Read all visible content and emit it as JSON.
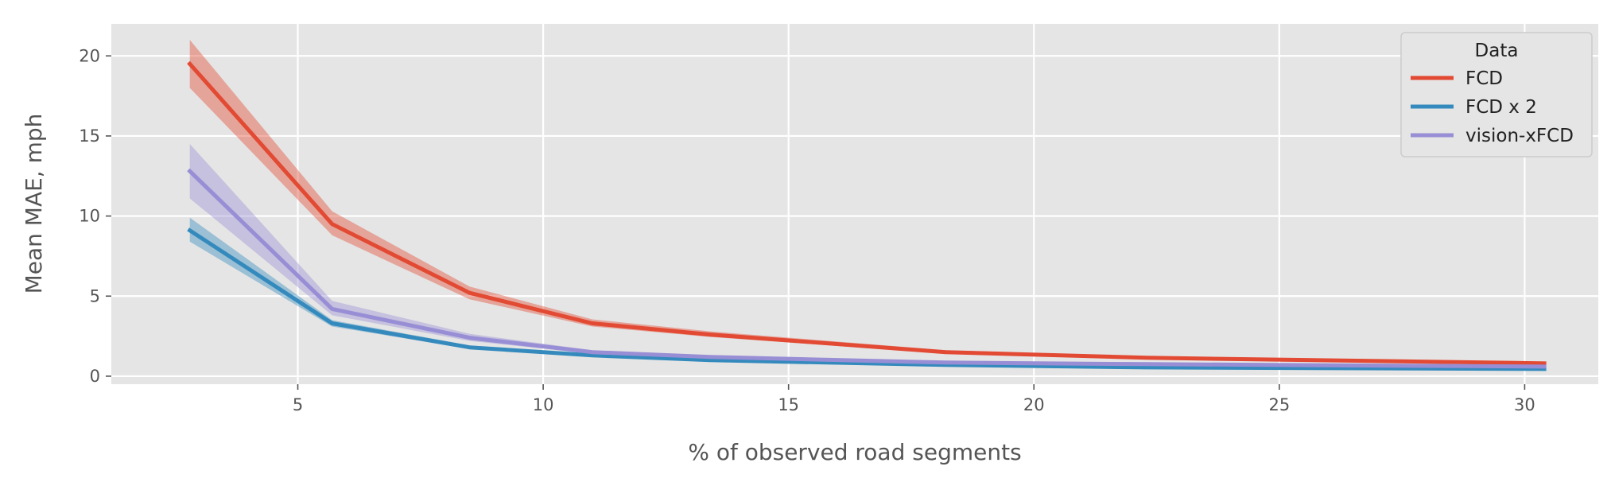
{
  "chart_data": {
    "type": "line",
    "xlabel": "% of observed road segments",
    "ylabel": "Mean MAE, mph",
    "xlim": [
      1.2,
      31.5
    ],
    "ylim": [
      -0.5,
      22
    ],
    "x_ticks": [
      5,
      10,
      15,
      20,
      25,
      30
    ],
    "y_ticks": [
      0,
      5,
      10,
      15,
      20
    ],
    "grid": true,
    "legend": {
      "title": "Data",
      "placement": "top-right"
    },
    "series": [
      {
        "name": "FCD",
        "color": "#E24A33",
        "x": [
          2.8,
          5.7,
          8.5,
          11.0,
          13.4,
          18.2,
          22.3,
          30.4
        ],
        "values": [
          19.5,
          9.5,
          5.2,
          3.3,
          2.6,
          1.5,
          1.15,
          0.8
        ],
        "lower": [
          18.0,
          8.8,
          4.8,
          3.1,
          2.45,
          1.4,
          1.05,
          0.72
        ],
        "upper": [
          21.0,
          10.3,
          5.6,
          3.55,
          2.8,
          1.62,
          1.25,
          0.9
        ]
      },
      {
        "name": "FCD x 2",
        "color": "#348ABD",
        "x": [
          2.8,
          5.7,
          8.5,
          11.0,
          13.4,
          18.2,
          22.3,
          30.4
        ],
        "values": [
          9.1,
          3.3,
          1.8,
          1.3,
          1.0,
          0.7,
          0.55,
          0.45
        ],
        "lower": [
          8.4,
          3.1,
          1.7,
          1.22,
          0.93,
          0.64,
          0.5,
          0.4
        ],
        "upper": [
          9.9,
          3.5,
          1.92,
          1.38,
          1.07,
          0.76,
          0.6,
          0.5
        ]
      },
      {
        "name": "vision-xFCD",
        "color": "#988ED5",
        "x": [
          2.8,
          5.7,
          8.5,
          11.0,
          13.4,
          18.2,
          22.3,
          30.4
        ],
        "values": [
          12.8,
          4.2,
          2.4,
          1.5,
          1.2,
          0.85,
          0.75,
          0.6
        ],
        "lower": [
          11.1,
          3.8,
          2.2,
          1.4,
          1.1,
          0.78,
          0.68,
          0.54
        ],
        "upper": [
          14.5,
          4.7,
          2.65,
          1.62,
          1.3,
          0.92,
          0.82,
          0.66
        ]
      }
    ]
  }
}
